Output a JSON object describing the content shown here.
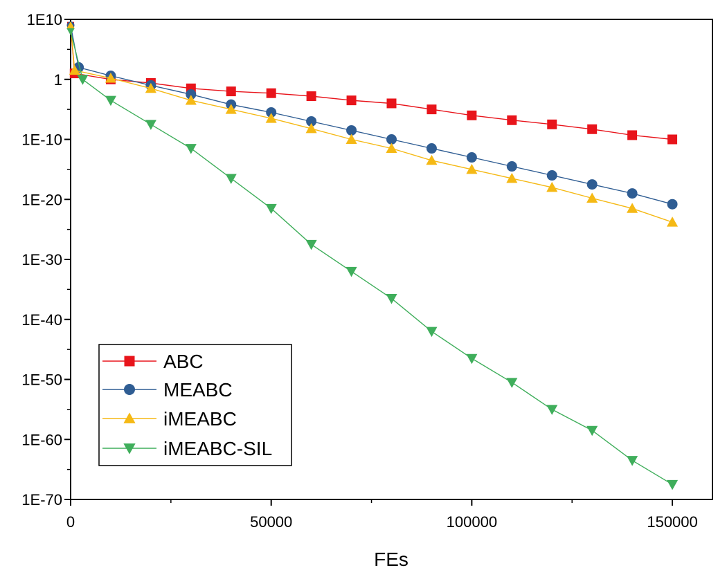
{
  "chart_data": {
    "type": "line",
    "title": "",
    "xlabel": "FEs",
    "ylabel": "",
    "xlim": [
      0,
      160000
    ],
    "ylim_log10": [
      -70,
      10
    ],
    "y_scale": "log",
    "grid": false,
    "legend_position": "bottom-left",
    "x_tick_labels": [
      "0",
      "50000",
      "100000",
      "150000"
    ],
    "x_tick_values": [
      0,
      50000,
      100000,
      150000
    ],
    "y_tick_labels": [
      "1E-70",
      "1E-60",
      "1E-50",
      "1E-40",
      "1E-30",
      "1E-20",
      "1E-10",
      "1",
      "1E10"
    ],
    "y_tick_log10": [
      -70,
      -60,
      -50,
      -40,
      -30,
      -20,
      -10,
      0,
      10
    ],
    "series": [
      {
        "name": "ABC",
        "color": "#e8141b",
        "marker": "square",
        "x": [
          0,
          1000,
          10000,
          20000,
          30000,
          40000,
          50000,
          60000,
          70000,
          80000,
          90000,
          100000,
          110000,
          120000,
          130000,
          140000,
          150000
        ],
        "log10_y": [
          9,
          1,
          0,
          -0.6,
          -1.5,
          -2.0,
          -2.3,
          -2.8,
          -3.5,
          -4.0,
          -5.0,
          -6.0,
          -6.8,
          -7.5,
          -8.3,
          -9.3,
          -10.0
        ]
      },
      {
        "name": "MEABC",
        "color": "#2f5d93",
        "marker": "circle",
        "x": [
          0,
          2000,
          10000,
          20000,
          30000,
          40000,
          50000,
          60000,
          70000,
          80000,
          90000,
          100000,
          110000,
          120000,
          130000,
          140000,
          150000
        ],
        "log10_y": [
          9,
          2,
          0.6,
          -1.0,
          -2.5,
          -4.2,
          -5.5,
          -7.0,
          -8.5,
          -10.0,
          -11.5,
          -13.0,
          -14.5,
          -16.0,
          -17.5,
          -19.0,
          -20.8
        ]
      },
      {
        "name": "iMEABC",
        "color": "#f5b915",
        "marker": "triangle-up",
        "x": [
          0,
          1000,
          10000,
          20000,
          30000,
          40000,
          50000,
          60000,
          70000,
          80000,
          90000,
          100000,
          110000,
          120000,
          130000,
          140000,
          150000
        ],
        "log10_y": [
          9,
          1.5,
          0.2,
          -1.5,
          -3.5,
          -5.0,
          -6.5,
          -8.2,
          -10.0,
          -11.5,
          -13.5,
          -15.0,
          -16.5,
          -18.0,
          -19.8,
          -21.5,
          -23.8
        ]
      },
      {
        "name": "iMEABC-SIL",
        "color": "#3fae5b",
        "marker": "triangle-down",
        "x": [
          0,
          3000,
          10000,
          20000,
          30000,
          40000,
          50000,
          60000,
          70000,
          80000,
          90000,
          100000,
          110000,
          120000,
          130000,
          140000,
          150000
        ],
        "log10_y": [
          8,
          0,
          -3.5,
          -7.5,
          -11.5,
          -16.5,
          -21.5,
          -27.5,
          -32.0,
          -36.5,
          -42.0,
          -46.5,
          -50.5,
          -55.0,
          -58.5,
          -63.5,
          -67.5
        ]
      }
    ]
  }
}
